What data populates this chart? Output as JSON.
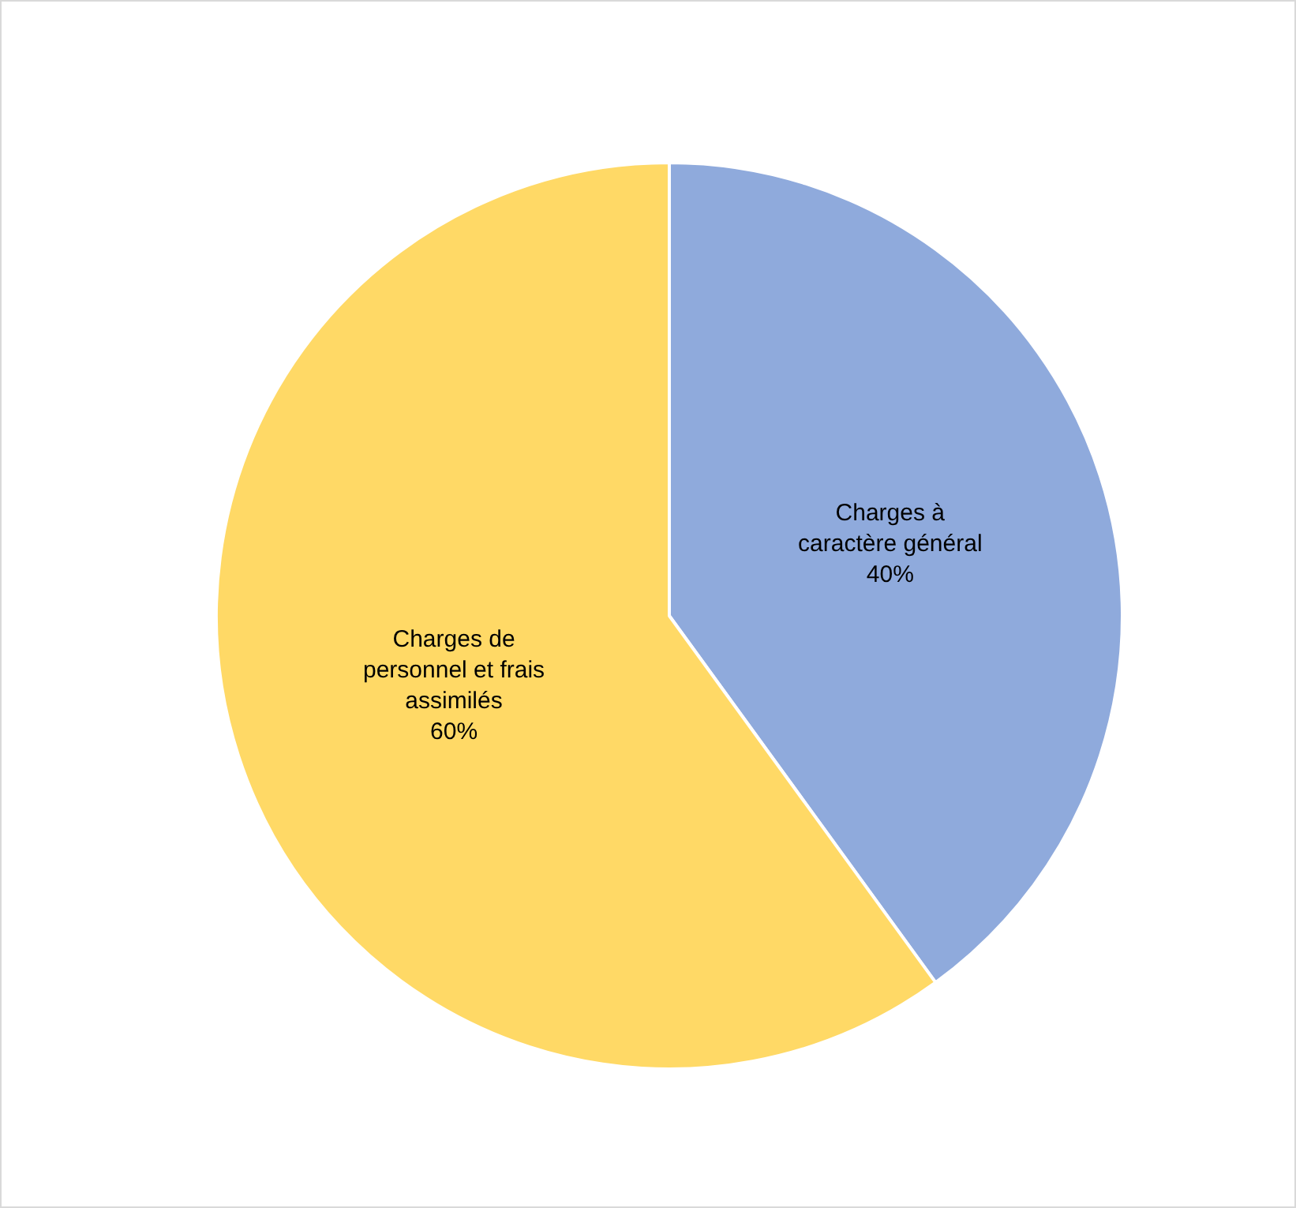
{
  "chart_data": {
    "type": "pie",
    "categories": [
      "Charges à caractère général",
      "Charges de personnel et frais assimilés"
    ],
    "values": [
      40,
      60
    ],
    "colors": [
      "#8faadc",
      "#ffd966"
    ],
    "value_labels": [
      "40%",
      "60%"
    ],
    "legend": false
  }
}
